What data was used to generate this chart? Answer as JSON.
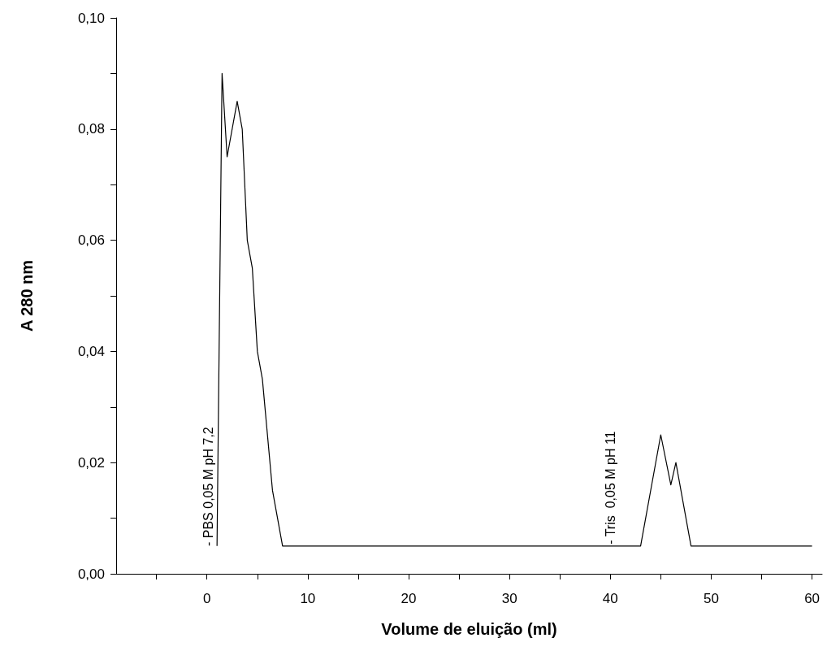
{
  "chart_data": {
    "type": "line",
    "xlabel": "Volume de eluição (ml)",
    "ylabel": "A 280 nm",
    "x": [
      1,
      1.5,
      2,
      3,
      3.5,
      4,
      4.5,
      5,
      5.5,
      6.5,
      7.5,
      43,
      45,
      46,
      46.5,
      48,
      60
    ],
    "series": [
      {
        "color": "#000000",
        "values": [
          0.005,
          0.09,
          0.075,
          0.085,
          0.08,
          0.06,
          0.055,
          0.04,
          0.035,
          0.015,
          0.005,
          0.005,
          0.025,
          0.016,
          0.02,
          0.005,
          0.005
        ]
      }
    ],
    "xlim": [
      -9,
      61
    ],
    "xticks": [
      {
        "value": -5,
        "label": null
      },
      0,
      {
        "value": 5,
        "label": null
      },
      10,
      {
        "value": 15,
        "label": null
      },
      20,
      {
        "value": 25,
        "label": null
      },
      30,
      {
        "value": 35,
        "label": null
      },
      40,
      {
        "value": 45,
        "label": null
      },
      50,
      {
        "value": 55,
        "label": null
      },
      60
    ],
    "ylim": [
      0,
      0.1
    ],
    "yticks": [
      {
        "value": 0,
        "label": "0,00"
      },
      {
        "value": 0.01,
        "label": null
      },
      {
        "value": 0.02,
        "label": "0,02"
      },
      {
        "value": 0.03,
        "label": null
      },
      {
        "value": 0.04,
        "label": "0,04"
      },
      {
        "value": 0.05,
        "label": null
      },
      {
        "value": 0.06,
        "label": "0,06"
      },
      {
        "value": 0.07,
        "label": null
      },
      {
        "value": 0.08,
        "label": "0,08"
      },
      {
        "value": 0.09,
        "label": null
      },
      {
        "value": 0.1,
        "label": "0,10"
      }
    ],
    "annotations": [
      "- PBS 0,05 M pH 7,2",
      {
        "text": "- Tris  0,05 M pH 11",
        "x": 40,
        "y": 0.005
      }
    ],
    "grid": false
  }
}
